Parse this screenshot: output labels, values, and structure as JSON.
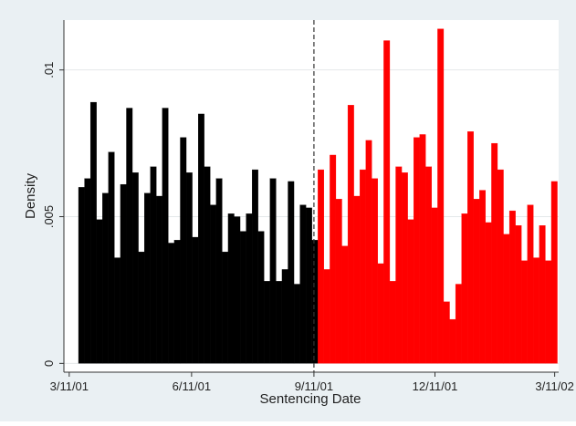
{
  "chart_data": {
    "type": "histogram",
    "x_label": "Sentencing Date",
    "y_label": "Density",
    "bins": [
      7,
      11.5,
      16,
      20.5,
      25,
      29.5,
      34,
      38.5,
      43,
      47.5,
      52,
      56.5,
      61,
      65.5,
      70,
      74.5,
      79,
      83.5,
      88,
      92.5,
      97,
      101.5,
      106,
      110.5,
      115,
      119.5,
      124,
      128.5,
      133,
      137.5,
      142,
      146.5,
      151,
      155.5,
      160,
      164.5,
      169,
      173.5,
      178,
      182.5,
      187,
      191.5,
      196,
      200.5,
      205,
      209.5,
      214,
      218.5,
      223,
      227.5,
      232,
      236.5,
      241,
      245.5,
      250,
      254.5,
      259,
      263.5,
      268,
      272.5,
      277,
      281.5,
      286,
      290.5,
      295,
      299.5,
      304,
      308.5,
      313,
      317.5,
      322,
      326.5,
      331,
      335.5,
      340,
      344.5,
      349,
      353.5,
      358,
      362.5,
      367
    ],
    "values": [
      0.006,
      0.0063,
      0.0089,
      0.0049,
      0.0058,
      0.0072,
      0.0036,
      0.0061,
      0.0087,
      0.0065,
      0.0038,
      0.0058,
      0.0067,
      0.0057,
      0.0087,
      0.0041,
      0.0042,
      0.0077,
      0.0065,
      0.0043,
      0.0085,
      0.0067,
      0.0054,
      0.0063,
      0.0038,
      0.0051,
      0.005,
      0.0045,
      0.0051,
      0.0066,
      0.0045,
      0.0028,
      0.0063,
      0.0028,
      0.0032,
      0.0062,
      0.0027,
      0.0054,
      0.0053,
      0.0042,
      0.0066,
      0.0032,
      0.0071,
      0.0056,
      0.004,
      0.0088,
      0.0057,
      0.0066,
      0.0076,
      0.0063,
      0.0034,
      0.011,
      0.0028,
      0.0067,
      0.0065,
      0.0049,
      0.0077,
      0.0078,
      0.0067,
      0.0053,
      0.0114,
      0.0021,
      0.0015,
      0.0027,
      0.0051,
      0.0079,
      0.0056,
      0.0059,
      0.0048,
      0.0075,
      0.0066,
      0.0044,
      0.0052,
      0.0047,
      0.0035,
      0.0054,
      0.0036,
      0.0047,
      0.0035,
      0.0062
    ],
    "vline": 184,
    "color_before": "#000000",
    "color_after": "#ff0000",
    "xlim": [
      -4,
      368
    ],
    "xticks": [
      {
        "value": 0,
        "label": "3/11/01"
      },
      {
        "value": 92,
        "label": "6/11/01"
      },
      {
        "value": 184,
        "label": "9/11/01"
      },
      {
        "value": 275,
        "label": "12/11/01"
      },
      {
        "value": 365,
        "label": "3/11/02"
      }
    ],
    "ylim": [
      -0.0003,
      0.0117
    ],
    "yticks": [
      0,
      {
        "value": 0.005,
        "label": ".005"
      },
      {
        "value": 0.01,
        "label": ".01"
      }
    ],
    "grid": true
  }
}
